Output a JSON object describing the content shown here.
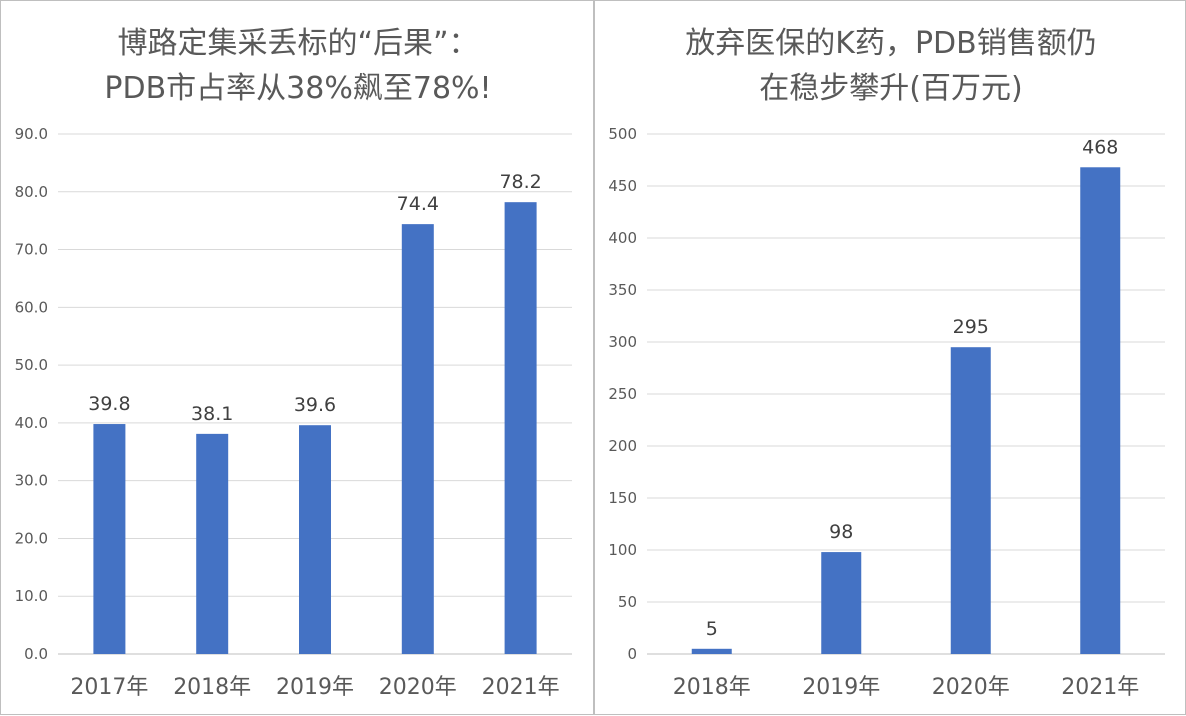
{
  "chart_data": [
    {
      "type": "bar",
      "title_lines": [
        "博路定集采丢标的“后果”：",
        "PDB市占率从38%飙至78%!"
      ],
      "categories": [
        "2017年",
        "2018年",
        "2019年",
        "2020年",
        "2021年"
      ],
      "values": [
        39.8,
        38.1,
        39.6,
        74.4,
        78.2
      ],
      "value_labels": [
        "39.8",
        "38.1",
        "39.6",
        "74.4",
        "78.2"
      ],
      "ylim": [
        0,
        90
      ],
      "yticks": [
        "0.0",
        "10.0",
        "20.0",
        "30.0",
        "40.0",
        "50.0",
        "60.0",
        "70.0",
        "80.0",
        "90.0"
      ],
      "bar_color": "#4472c4",
      "grid": true
    },
    {
      "type": "bar",
      "title_lines": [
        "放弃医保的K药，PDB销售额仍",
        "在稳步攀升(百万元)"
      ],
      "categories": [
        "2018年",
        "2019年",
        "2020年",
        "2021年"
      ],
      "values": [
        5,
        98,
        295,
        468
      ],
      "value_labels": [
        "5",
        "98",
        "295",
        "468"
      ],
      "ylim": [
        0,
        500
      ],
      "yticks": [
        "0",
        "50",
        "100",
        "150",
        "200",
        "250",
        "300",
        "350",
        "400",
        "450",
        "500"
      ],
      "bar_color": "#4472c4",
      "grid": true
    }
  ]
}
